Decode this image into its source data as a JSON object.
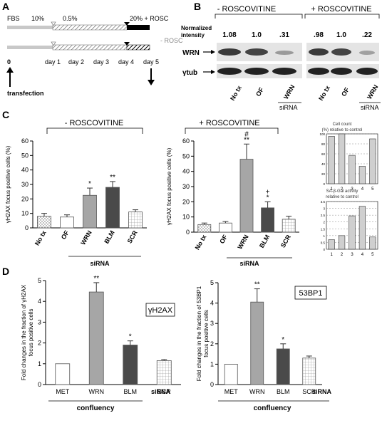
{
  "panel_labels": {
    "a": "A",
    "b": "B",
    "c": "C",
    "d": "D"
  },
  "panel_a": {
    "fbs_label": "FBS",
    "pct_10": "10%",
    "pct_05": "0.5%",
    "pct_20_rosc": "20% + ROSC",
    "minus_rosc": "- ROSC",
    "days": [
      "0",
      "day 1",
      "day 2",
      "day 3",
      "day 4",
      "day 5"
    ],
    "transfection": "transfection"
  },
  "panel_b": {
    "minus_header": "- ROSCOVITINE",
    "plus_header": "+ ROSCOVITINE",
    "normalized_label_line1": "Normalized",
    "normalized_label_line2": "intensity",
    "minus_values": [
      "1.08",
      "1.0",
      ".31"
    ],
    "plus_values": [
      ".98",
      "1.0",
      ".22"
    ],
    "row_labels": [
      "WRN",
      "γtub"
    ],
    "lane_labels": [
      "No tx",
      "OF",
      "WRN"
    ],
    "sirna": "siRNA"
  },
  "chart_data": [
    {
      "type": "bar",
      "title": "- ROSCOVITINE",
      "ylabel": "γH2AX focus positive cells (%)",
      "ylim": [
        0,
        60
      ],
      "yticks": [
        "0",
        "10",
        "20",
        "30",
        "40",
        "50",
        "60"
      ],
      "categories": [
        "No tx",
        "OF",
        "WRN",
        "BLM",
        "SCR"
      ],
      "values": [
        8,
        7.5,
        22.5,
        28,
        11
      ],
      "errors": [
        2,
        1.5,
        5,
        4,
        1.5
      ],
      "annotations": [
        "",
        "",
        "*",
        "**",
        ""
      ],
      "group_label": "siRNA"
    },
    {
      "type": "bar",
      "title": "+ ROSCOVITINE",
      "ylabel": "γH2AX focus positive cells (%)",
      "ylim": [
        0,
        60
      ],
      "yticks": [
        "0",
        "10",
        "20",
        "30",
        "40",
        "50",
        "60"
      ],
      "categories": [
        "No tx",
        "OF",
        "WRN",
        "BLM",
        "SCR"
      ],
      "values": [
        5,
        6,
        48,
        16,
        8.5
      ],
      "errors": [
        1,
        1,
        10,
        4,
        2
      ],
      "annotations": [
        "",
        "",
        "#\n**",
        "+\n*",
        ""
      ],
      "group_label": "siRNA"
    },
    {
      "type": "bar",
      "title": "Cell count (%) relative to control",
      "ylim": [
        0,
        100
      ],
      "yticks": [
        "0",
        "20",
        "40",
        "60",
        "80",
        "100"
      ],
      "categories": [
        "1",
        "2",
        "3",
        "4",
        "5"
      ],
      "values": [
        95,
        100,
        57,
        35,
        90
      ]
    },
    {
      "type": "bar",
      "title": "SA-β-Gal activity relative to control",
      "ylim": [
        0,
        3.5
      ],
      "yticks": [
        "0",
        "0.5",
        "1",
        "1.5",
        "2",
        "2.5",
        "3",
        "3.5"
      ],
      "categories": [
        "1",
        "2",
        "3",
        "4",
        "5"
      ],
      "values": [
        0.7,
        1.0,
        2.45,
        3.15,
        0.9
      ]
    },
    {
      "type": "bar",
      "ylabel": "Fold changes in the fraction of γH2AX focus positive cells",
      "ylim": [
        0,
        5
      ],
      "yticks": [
        "0",
        "1",
        "2",
        "3",
        "4",
        "5"
      ],
      "categories": [
        "MET",
        "WRN",
        "BLM",
        "SCR"
      ],
      "values": [
        1.0,
        4.45,
        1.9,
        1.15
      ],
      "errors": [
        0,
        0.45,
        0.2,
        0.05
      ],
      "annotations": [
        "",
        "**",
        "*",
        ""
      ],
      "legend_box": "γH2AX",
      "group_label": "confluency",
      "sirna": "siRNA"
    },
    {
      "type": "bar",
      "ylabel": "Fold changes in the fraction of 53BP1 focus positive cells",
      "ylim": [
        0,
        5
      ],
      "yticks": [
        "0",
        "1",
        "2",
        "3",
        "4",
        "5"
      ],
      "categories": [
        "MET",
        "WRN",
        "BLM",
        "SCR"
      ],
      "values": [
        1.0,
        4.05,
        1.75,
        1.3
      ],
      "errors": [
        0,
        0.65,
        0.25,
        0.1
      ],
      "annotations": [
        "",
        "**",
        "*",
        ""
      ],
      "legend_box": "53BP1",
      "group_label": "confluency",
      "sirna": "siRNA"
    }
  ],
  "colors": {
    "light_gray": "#a6a6a6",
    "dark_gray": "#4a4a4a"
  }
}
